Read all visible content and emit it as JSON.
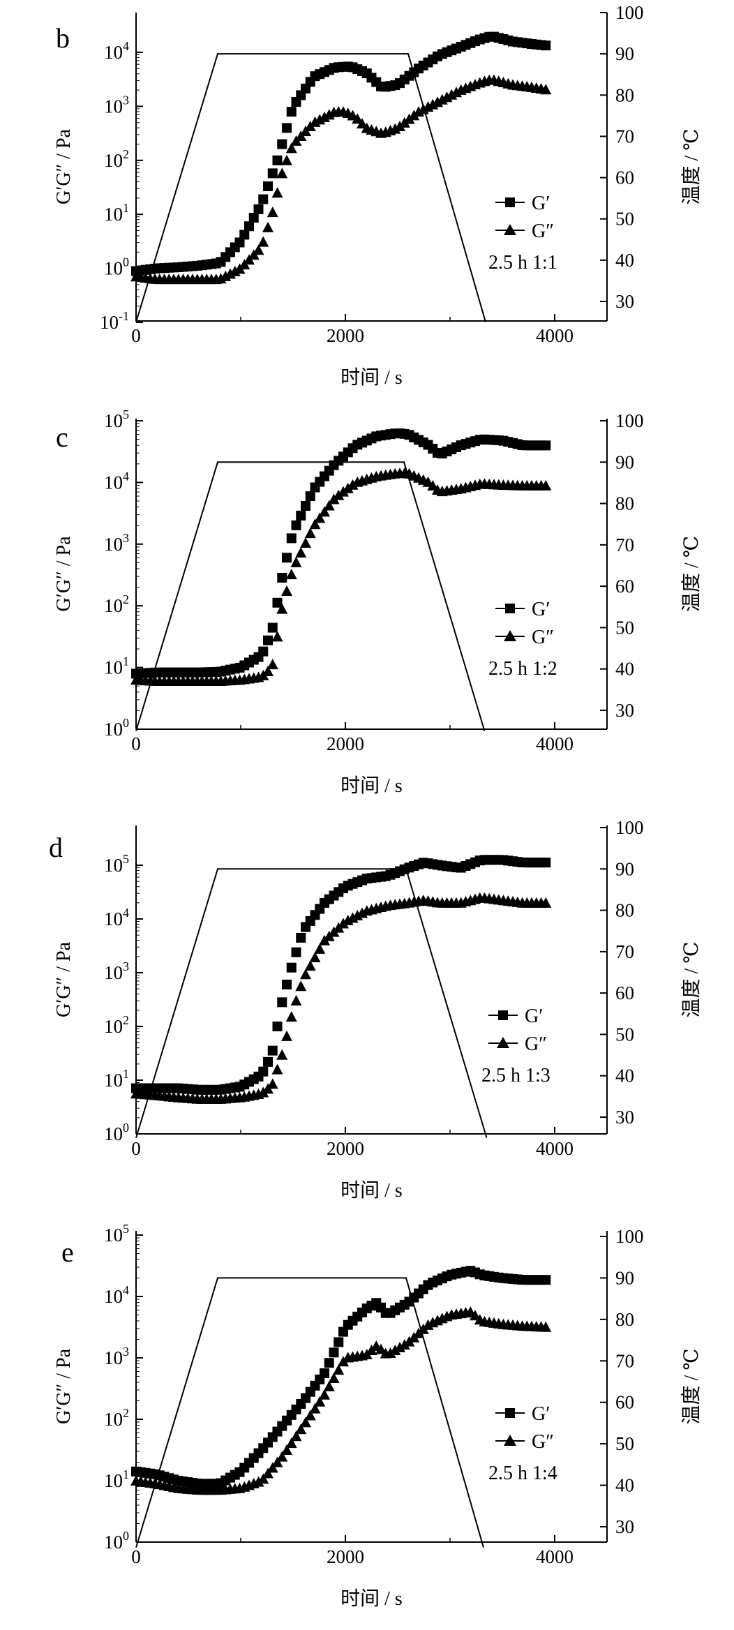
{
  "chart_data": [
    {
      "panel": "b",
      "type": "scatter",
      "xlabel": "时间 / s",
      "ylabel": "G′G″ / Pa",
      "y2label": "温度 / ℃",
      "x_ticks": [
        "0",
        "2000",
        "4000"
      ],
      "xlim": [
        0,
        4500
      ],
      "y_ticks": [
        {
          "base": "10",
          "exp": "-1"
        },
        {
          "base": "10",
          "exp": "0"
        },
        {
          "base": "10",
          "exp": "1"
        },
        {
          "base": "10",
          "exp": "2"
        },
        {
          "base": "10",
          "exp": "3"
        },
        {
          "base": "10",
          "exp": "4"
        }
      ],
      "ylim_log10": [
        -1,
        4.8
      ],
      "y2_ticks": [
        "30",
        "40",
        "50",
        "60",
        "70",
        "80",
        "90",
        "100"
      ],
      "y2lim": [
        25,
        100
      ],
      "legend": {
        "g1": "G′",
        "g2": "G″",
        "note": "2.5 h 1:1"
      },
      "temperature": {
        "x": [
          0,
          780,
          2600,
          3340
        ],
        "y": [
          25,
          90,
          90,
          25
        ]
      },
      "series": [
        {
          "name": "G′",
          "marker": "square",
          "x": [
            0,
            200,
            400,
            600,
            800,
            1000,
            1200,
            1350,
            1500,
            1700,
            1900,
            2050,
            2200,
            2350,
            2500,
            2700,
            2900,
            3100,
            3300,
            3400,
            3600,
            3800,
            3950
          ],
          "log10": [
            -0.05,
            0.0,
            0.02,
            0.05,
            0.1,
            0.5,
            1.2,
            2.0,
            3.0,
            3.55,
            3.72,
            3.74,
            3.62,
            3.35,
            3.4,
            3.7,
            3.95,
            4.1,
            4.25,
            4.3,
            4.2,
            4.15,
            4.12
          ]
        },
        {
          "name": "G″",
          "marker": "triangle",
          "x": [
            0,
            200,
            400,
            600,
            800,
            1000,
            1200,
            1300,
            1400,
            1500,
            1700,
            1900,
            2000,
            2100,
            2200,
            2350,
            2500,
            2700,
            2900,
            3100,
            3300,
            3400,
            3600,
            3800,
            3950
          ],
          "log10": [
            -0.15,
            -0.2,
            -0.2,
            -0.2,
            -0.2,
            0.0,
            0.4,
            1.0,
            1.8,
            2.3,
            2.7,
            2.9,
            2.9,
            2.8,
            2.6,
            2.5,
            2.6,
            2.9,
            3.1,
            3.3,
            3.45,
            3.5,
            3.4,
            3.35,
            3.3
          ]
        }
      ]
    },
    {
      "panel": "c",
      "type": "scatter",
      "xlabel": "时间 / s",
      "ylabel": "G′G″ / Pa",
      "y2label": "温度 / ℃",
      "x_ticks": [
        "0",
        "2000",
        "4000"
      ],
      "xlim": [
        0,
        4500
      ],
      "y_ticks": [
        {
          "base": "10",
          "exp": "0"
        },
        {
          "base": "10",
          "exp": "1"
        },
        {
          "base": "10",
          "exp": "2"
        },
        {
          "base": "10",
          "exp": "3"
        },
        {
          "base": "10",
          "exp": "4"
        },
        {
          "base": "10",
          "exp": "5"
        }
      ],
      "ylim_log10": [
        0,
        5
      ],
      "y2_ticks": [
        "30",
        "40",
        "50",
        "60",
        "70",
        "80",
        "90",
        "100"
      ],
      "y2lim": [
        25,
        100
      ],
      "legend": {
        "g1": "G′",
        "g2": "G″",
        "note": "2.5 h 1:2"
      },
      "temperature": {
        "x": [
          0,
          780,
          2560,
          3330
        ],
        "y": [
          25,
          90,
          90,
          25
        ]
      },
      "series": [
        {
          "name": "G′",
          "marker": "square",
          "x": [
            0,
            200,
            400,
            600,
            800,
            1000,
            1200,
            1300,
            1400,
            1500,
            1700,
            1900,
            2100,
            2300,
            2500,
            2600,
            2800,
            2900,
            3100,
            3300,
            3500,
            3700,
            3950
          ],
          "log10": [
            0.9,
            0.92,
            0.92,
            0.92,
            0.93,
            1.0,
            1.2,
            1.6,
            2.5,
            3.2,
            3.9,
            4.3,
            4.6,
            4.75,
            4.8,
            4.78,
            4.6,
            4.45,
            4.6,
            4.7,
            4.68,
            4.6,
            4.6
          ]
        },
        {
          "name": "G″",
          "marker": "triangle",
          "x": [
            0,
            200,
            400,
            600,
            800,
            1000,
            1200,
            1300,
            1400,
            1500,
            1700,
            1900,
            2100,
            2300,
            2500,
            2600,
            2800,
            2900,
            3100,
            3300,
            3500,
            3700,
            3950
          ],
          "log10": [
            0.8,
            0.78,
            0.78,
            0.78,
            0.78,
            0.8,
            0.85,
            1.0,
            2.0,
            2.6,
            3.3,
            3.75,
            4.0,
            4.1,
            4.15,
            4.15,
            4.0,
            3.85,
            3.9,
            3.98,
            3.96,
            3.95,
            3.95
          ]
        }
      ]
    },
    {
      "panel": "d",
      "type": "scatter",
      "xlabel": "时间 / s",
      "ylabel": "G′G″ / Pa",
      "y2label": "温度 / ℃",
      "x_ticks": [
        "0",
        "2000",
        "4000"
      ],
      "xlim": [
        0,
        4500
      ],
      "y_ticks": [
        {
          "base": "10",
          "exp": "0"
        },
        {
          "base": "10",
          "exp": "1"
        },
        {
          "base": "10",
          "exp": "2"
        },
        {
          "base": "10",
          "exp": "3"
        },
        {
          "base": "10",
          "exp": "4"
        },
        {
          "base": "10",
          "exp": "5"
        }
      ],
      "ylim_log10": [
        0,
        5.7
      ],
      "y2_ticks": [
        "30",
        "40",
        "50",
        "60",
        "70",
        "80",
        "90",
        "100"
      ],
      "y2lim": [
        25,
        100
      ],
      "legend": {
        "g1": "G′",
        "g2": "G″",
        "note": "2.5 h 1:3"
      },
      "temperature": {
        "x": [
          0,
          780,
          2580,
          3350
        ],
        "y": [
          25,
          90,
          90,
          25
        ]
      },
      "series": [
        {
          "name": "G′",
          "marker": "square",
          "x": [
            0,
            200,
            400,
            600,
            800,
            1000,
            1200,
            1300,
            1400,
            1500,
            1600,
            1800,
            2000,
            2200,
            2400,
            2600,
            2750,
            2900,
            3100,
            3300,
            3500,
            3700,
            3950
          ],
          "log10": [
            0.85,
            0.85,
            0.85,
            0.82,
            0.82,
            0.88,
            1.1,
            1.5,
            2.5,
            3.2,
            3.8,
            4.3,
            4.6,
            4.75,
            4.8,
            4.95,
            5.05,
            5.0,
            4.95,
            5.1,
            5.1,
            5.05,
            5.05
          ]
        },
        {
          "name": "G″",
          "marker": "triangle",
          "x": [
            0,
            200,
            400,
            600,
            800,
            1000,
            1200,
            1300,
            1400,
            1500,
            1600,
            1800,
            2000,
            2200,
            2400,
            2600,
            2750,
            2900,
            3100,
            3300,
            3500,
            3700,
            3950
          ],
          "log10": [
            0.75,
            0.72,
            0.68,
            0.65,
            0.65,
            0.68,
            0.75,
            0.9,
            1.5,
            2.3,
            2.9,
            3.6,
            3.95,
            4.15,
            4.25,
            4.3,
            4.35,
            4.3,
            4.3,
            4.4,
            4.35,
            4.3,
            4.3
          ]
        }
      ]
    },
    {
      "panel": "e",
      "type": "scatter",
      "xlabel": "时间 / s",
      "ylabel": "G′G″ / Pa",
      "y2label": "温度 / ℃",
      "x_ticks": [
        "0",
        "2000",
        "4000"
      ],
      "xlim": [
        0,
        4500
      ],
      "y_ticks": [
        {
          "base": "10",
          "exp": "0"
        },
        {
          "base": "10",
          "exp": "1"
        },
        {
          "base": "10",
          "exp": "2"
        },
        {
          "base": "10",
          "exp": "3"
        },
        {
          "base": "10",
          "exp": "4"
        },
        {
          "base": "10",
          "exp": "5"
        }
      ],
      "ylim_log10": [
        0,
        5
      ],
      "y2_ticks": [
        "30",
        "40",
        "50",
        "60",
        "70",
        "80",
        "90",
        "100"
      ],
      "y2lim": [
        25,
        100
      ],
      "legend": {
        "g1": "G′",
        "g2": "G″",
        "note": "2.5 h 1:4"
      },
      "temperature": {
        "x": [
          0,
          780,
          2580,
          3320
        ],
        "y": [
          25,
          90,
          90,
          25
        ]
      },
      "series": [
        {
          "name": "G′",
          "marker": "square",
          "x": [
            0,
            200,
            400,
            600,
            800,
            1000,
            1200,
            1400,
            1600,
            1800,
            2000,
            2200,
            2300,
            2400,
            2600,
            2800,
            3000,
            3200,
            3300,
            3500,
            3700,
            3950
          ],
          "log10": [
            1.15,
            1.1,
            1.0,
            0.95,
            0.95,
            1.15,
            1.5,
            1.9,
            2.3,
            2.75,
            3.5,
            3.8,
            3.9,
            3.7,
            3.9,
            4.2,
            4.35,
            4.42,
            4.35,
            4.3,
            4.27,
            4.27
          ]
        },
        {
          "name": "G″",
          "marker": "triangle",
          "x": [
            0,
            200,
            400,
            600,
            800,
            1000,
            1200,
            1400,
            1600,
            1800,
            2000,
            2200,
            2300,
            2400,
            2600,
            2800,
            3000,
            3200,
            3300,
            3500,
            3700,
            3950
          ],
          "log10": [
            1.0,
            0.95,
            0.88,
            0.85,
            0.85,
            0.88,
            1.0,
            1.4,
            1.9,
            2.4,
            3.0,
            3.05,
            3.2,
            3.05,
            3.25,
            3.55,
            3.7,
            3.75,
            3.6,
            3.55,
            3.52,
            3.5
          ]
        }
      ]
    }
  ]
}
